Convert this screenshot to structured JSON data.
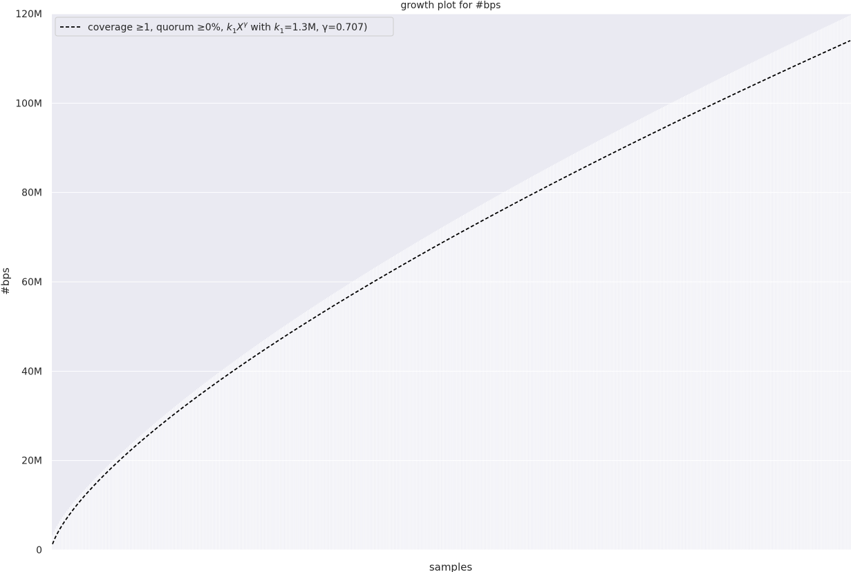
{
  "chart_data": {
    "type": "line",
    "title": "growth plot for #bps",
    "xlabel": "samples",
    "ylabel": "#bps",
    "ylim": [
      0,
      120000000
    ],
    "yticks": [
      {
        "value": 0,
        "label": "0"
      },
      {
        "value": 20000000,
        "label": "20M"
      },
      {
        "value": 40000000,
        "label": "40M"
      },
      {
        "value": 60000000,
        "label": "60M"
      },
      {
        "value": 80000000,
        "label": "80M"
      },
      {
        "value": 100000000,
        "label": "100M"
      },
      {
        "value": 120000000,
        "label": "120M"
      }
    ],
    "grid": true,
    "legend_position": "top-left",
    "fit": {
      "k1": 1300000,
      "gamma": 0.707
    },
    "series": [
      {
        "name": "coverage ≥1, quorum ≥0%, k1X^γ with k1=1.3M, γ=0.707)",
        "style": "dashed",
        "color": "#000000"
      }
    ],
    "legend": {
      "text_parts": [
        "coverage ≥1, quorum ≥0%, ",
        "k",
        "1",
        "X",
        "γ",
        " with ",
        "k",
        "1",
        "=1.3M, γ=0.707)"
      ]
    },
    "colors": {
      "plot_background": "#eaeaf2",
      "grid": "#ffffff",
      "curve": "#000000"
    }
  }
}
